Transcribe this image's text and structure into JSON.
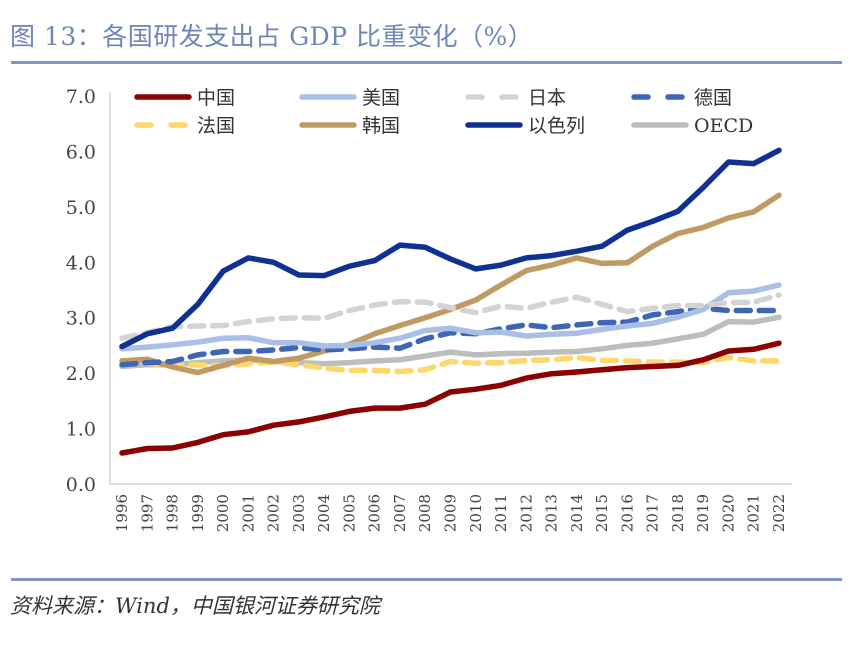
{
  "header": {
    "title": "图 13：各国研发支出占 GDP 比重变化（%）"
  },
  "footer": {
    "source": "资料来源：Wind，中国银河证券研究院"
  },
  "chart_data": {
    "type": "line",
    "title": "各国研发支出占 GDP 比重变化（%）",
    "xlabel": "",
    "ylabel": "",
    "ylim": [
      0,
      7
    ],
    "yticks": [
      "0.0",
      "1.0",
      "2.0",
      "3.0",
      "4.0",
      "5.0",
      "6.0",
      "7.0"
    ],
    "grid": false,
    "legend_position": "top",
    "x": [
      "1996",
      "1997",
      "1998",
      "1999",
      "2000",
      "2001",
      "2002",
      "2003",
      "2004",
      "2005",
      "2006",
      "2007",
      "2008",
      "2009",
      "2010",
      "2011",
      "2012",
      "2013",
      "2014",
      "2015",
      "2016",
      "2017",
      "2018",
      "2019",
      "2020",
      "2021",
      "2022"
    ],
    "series": [
      {
        "name": "中国",
        "color": "#8b0000",
        "dashed": false,
        "values": [
          0.56,
          0.64,
          0.65,
          0.75,
          0.89,
          0.94,
          1.06,
          1.12,
          1.21,
          1.31,
          1.37,
          1.37,
          1.44,
          1.66,
          1.71,
          1.78,
          1.91,
          1.99,
          2.02,
          2.06,
          2.1,
          2.12,
          2.14,
          2.24,
          2.4,
          2.43,
          2.54
        ]
      },
      {
        "name": "美国",
        "color": "#a9bfe8",
        "dashed": false,
        "values": [
          2.44,
          2.47,
          2.51,
          2.56,
          2.63,
          2.64,
          2.55,
          2.55,
          2.49,
          2.5,
          2.55,
          2.63,
          2.77,
          2.81,
          2.73,
          2.74,
          2.67,
          2.7,
          2.72,
          2.79,
          2.85,
          2.9,
          3.01,
          3.15,
          3.45,
          3.48,
          3.59
        ]
      },
      {
        "name": "日本",
        "color": "#d3d3d3",
        "dashed": true,
        "values": [
          2.63,
          2.73,
          2.84,
          2.85,
          2.86,
          2.93,
          2.98,
          3.0,
          2.99,
          3.13,
          3.23,
          3.29,
          3.28,
          3.18,
          3.09,
          3.21,
          3.17,
          3.28,
          3.37,
          3.24,
          3.11,
          3.17,
          3.22,
          3.22,
          3.27,
          3.28,
          3.41
        ]
      },
      {
        "name": "德国",
        "color": "#3e66b2",
        "dashed": true,
        "values": [
          2.15,
          2.19,
          2.21,
          2.33,
          2.39,
          2.39,
          2.42,
          2.46,
          2.42,
          2.44,
          2.47,
          2.45,
          2.62,
          2.73,
          2.71,
          2.8,
          2.87,
          2.82,
          2.87,
          2.91,
          2.92,
          3.05,
          3.11,
          3.17,
          3.13,
          3.13,
          3.13
        ]
      },
      {
        "name": "法国",
        "color": "#fdd76a",
        "dashed": true,
        "values": [
          2.22,
          2.18,
          2.14,
          2.15,
          2.13,
          2.17,
          2.2,
          2.15,
          2.09,
          2.05,
          2.05,
          2.03,
          2.06,
          2.21,
          2.18,
          2.19,
          2.23,
          2.24,
          2.28,
          2.23,
          2.22,
          2.2,
          2.2,
          2.19,
          2.28,
          2.22,
          2.22
        ]
      },
      {
        "name": "韩国",
        "color": "#bf9b63",
        "dashed": false,
        "values": [
          2.22,
          2.25,
          2.11,
          2.01,
          2.14,
          2.27,
          2.21,
          2.27,
          2.4,
          2.52,
          2.71,
          2.86,
          3.0,
          3.15,
          3.32,
          3.59,
          3.85,
          3.95,
          4.08,
          3.98,
          3.99,
          4.29,
          4.52,
          4.63,
          4.8,
          4.91,
          5.21
        ]
      },
      {
        "name": "以色列",
        "color": "#0e3192",
        "dashed": false,
        "values": [
          2.48,
          2.71,
          2.81,
          3.24,
          3.84,
          4.08,
          4.0,
          3.77,
          3.76,
          3.93,
          4.03,
          4.31,
          4.27,
          4.06,
          3.88,
          3.95,
          4.08,
          4.12,
          4.2,
          4.29,
          4.58,
          4.74,
          4.92,
          5.35,
          5.81,
          5.78,
          6.02
        ]
      },
      {
        "name": "OECD",
        "color": "#bdbdbd",
        "dashed": false,
        "values": [
          2.12,
          2.15,
          2.15,
          2.19,
          2.22,
          2.24,
          2.21,
          2.19,
          2.17,
          2.19,
          2.22,
          2.24,
          2.31,
          2.38,
          2.33,
          2.35,
          2.36,
          2.38,
          2.39,
          2.44,
          2.5,
          2.54,
          2.62,
          2.7,
          2.93,
          2.92,
          3.01
        ]
      }
    ],
    "draw_order": [
      "OECD",
      "法国",
      "韩国",
      "德国",
      "美国",
      "日本",
      "以色列",
      "中国"
    ]
  }
}
